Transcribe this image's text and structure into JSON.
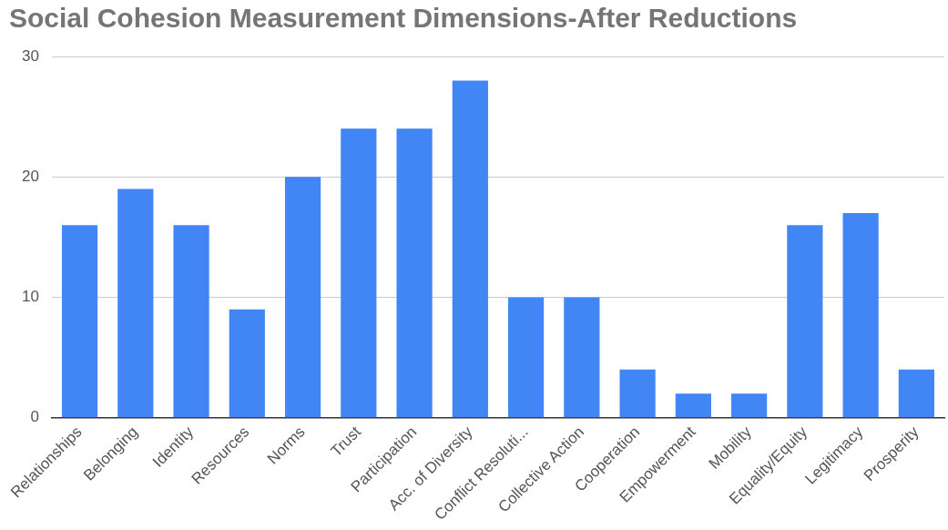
{
  "chart_data": {
    "type": "bar",
    "title": "Social Cohesion Measurement Dimensions-After Reductions",
    "categories": [
      "Relationships",
      "Belonging",
      "Identity",
      "Resources",
      "Norms",
      "Trust",
      "Participation",
      "Acc. of Diversity",
      "Conflict Resoluti...",
      "Collective Action",
      "Cooperation",
      "Empowerment",
      "Mobility",
      "Equality/Equity",
      "Legitimacy",
      "Prosperity"
    ],
    "values": [
      16,
      19,
      16,
      9,
      20,
      24,
      24,
      28,
      10,
      10,
      4,
      2,
      2,
      16,
      17,
      4
    ],
    "color": "#4285f4",
    "ylim": [
      0,
      30
    ],
    "yticks": [
      0,
      10,
      20,
      30
    ],
    "grid": "y",
    "legend": false
  }
}
